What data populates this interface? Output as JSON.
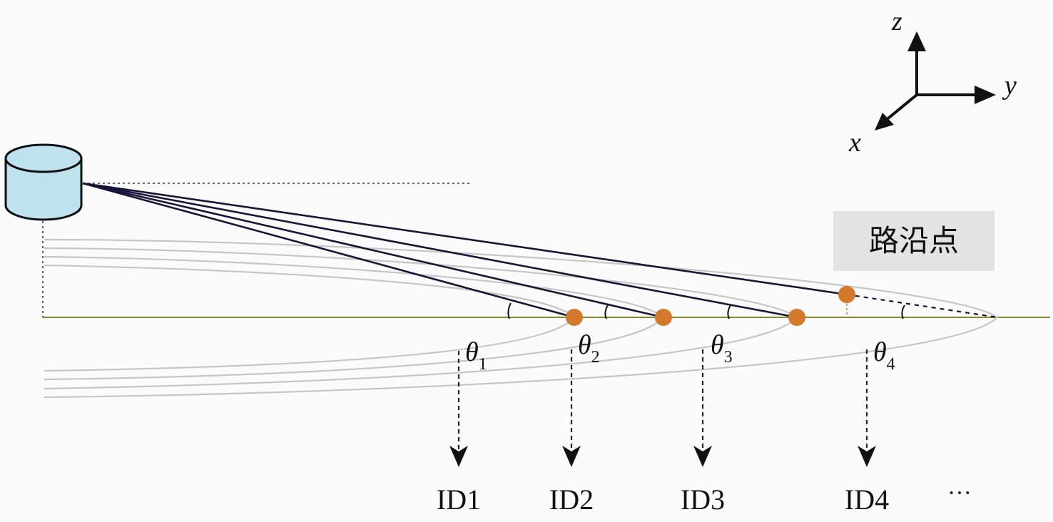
{
  "axes": {
    "z_label": "z",
    "y_label": "y",
    "x_label": "x"
  },
  "legend": {
    "label": "路沿点"
  },
  "angles": [
    {
      "symbol": "θ",
      "subscript": "1"
    },
    {
      "symbol": "θ",
      "subscript": "2"
    },
    {
      "symbol": "θ",
      "subscript": "3"
    },
    {
      "symbol": "θ",
      "subscript": "4"
    }
  ],
  "ids": [
    "ID1",
    "ID2",
    "ID3",
    "ID4"
  ],
  "ellipsis": "···",
  "colors": {
    "background": "#fbfbfb",
    "ground": "#8a8a2a",
    "beam": "#161638",
    "curve": "#c6c6c6",
    "curb_point": "#d4782a",
    "sensor_fill": "#bfe3ee",
    "legend_bg": "#e3e3e3",
    "arrow": "#222222"
  }
}
